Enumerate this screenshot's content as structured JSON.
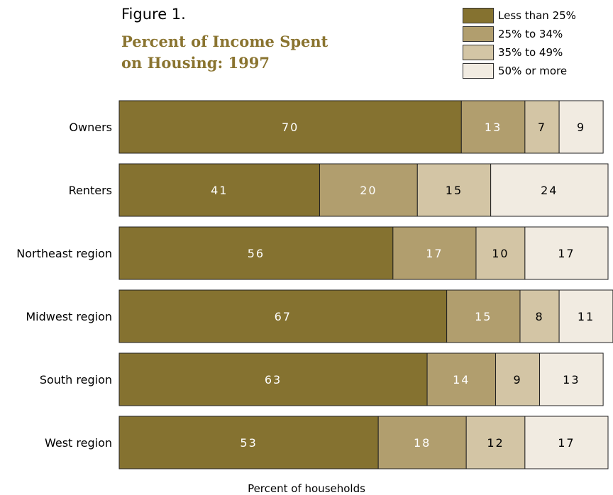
{
  "figure": {
    "label": "Figure 1.",
    "title": "Percent of Income Spent\non Housing:  1997"
  },
  "chart_data": {
    "type": "bar",
    "orientation": "horizontal",
    "stacked": true,
    "title": "Percent of Income Spent on Housing:  1997",
    "xlabel": "Percent of households",
    "ylabel": "",
    "xlim": [
      0,
      100
    ],
    "grid": false,
    "legend_position": "top-right",
    "categories": [
      "Owners",
      "Renters",
      "Northeast region",
      "Midwest region",
      "South region",
      "West region"
    ],
    "series": [
      {
        "name": "Less than 25%",
        "color": "#857230",
        "text_color": "#ffffff",
        "values": [
          70,
          41,
          56,
          67,
          63,
          53
        ]
      },
      {
        "name": "25% to 34%",
        "color": "#b19e6e",
        "text_color": "#ffffff",
        "values": [
          13,
          20,
          17,
          15,
          14,
          18
        ]
      },
      {
        "name": "35% to 49%",
        "color": "#d3c5a5",
        "text_color": "#000000",
        "values": [
          7,
          15,
          10,
          8,
          9,
          12
        ]
      },
      {
        "name": "50% or more",
        "color": "#f1ebe1",
        "text_color": "#000000",
        "values": [
          9,
          24,
          17,
          11,
          13,
          17
        ]
      }
    ]
  }
}
